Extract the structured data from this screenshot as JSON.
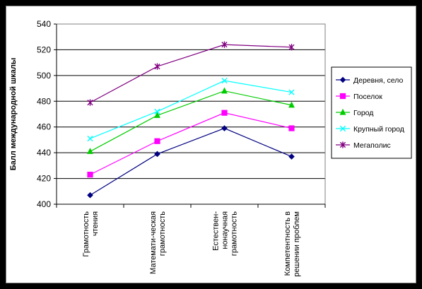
{
  "chart_data": {
    "type": "line",
    "title": "",
    "xlabel": "",
    "ylabel": "Балл международной шкалы",
    "ylim": [
      400,
      540
    ],
    "yticks": [
      400,
      420,
      440,
      460,
      480,
      500,
      520,
      540
    ],
    "grid": true,
    "legend_position": "right",
    "categories": [
      [
        "Грамотность",
        "чтения"
      ],
      [
        "Математи-ческая",
        "грамотность"
      ],
      [
        "Естествен-",
        "нонаучная",
        "грамотность"
      ],
      [
        "Компетентность в",
        "решении проблем"
      ]
    ],
    "series": [
      {
        "name": "Деревня, село",
        "color": "#000080",
        "marker": "diamond",
        "values": [
          407,
          439,
          459,
          437
        ]
      },
      {
        "name": "Поселок",
        "color": "#ff00ff",
        "marker": "square",
        "values": [
          423,
          449,
          471,
          459
        ]
      },
      {
        "name": "Город",
        "color": "#00cc00",
        "marker": "triangle",
        "values": [
          441,
          469,
          488,
          477
        ]
      },
      {
        "name": "Крупный город",
        "color": "#00ffff",
        "marker": "x",
        "values": [
          451,
          472,
          496,
          487
        ]
      },
      {
        "name": "Мегаполис",
        "color": "#800080",
        "marker": "star",
        "values": [
          479,
          507,
          524,
          522
        ]
      }
    ]
  }
}
